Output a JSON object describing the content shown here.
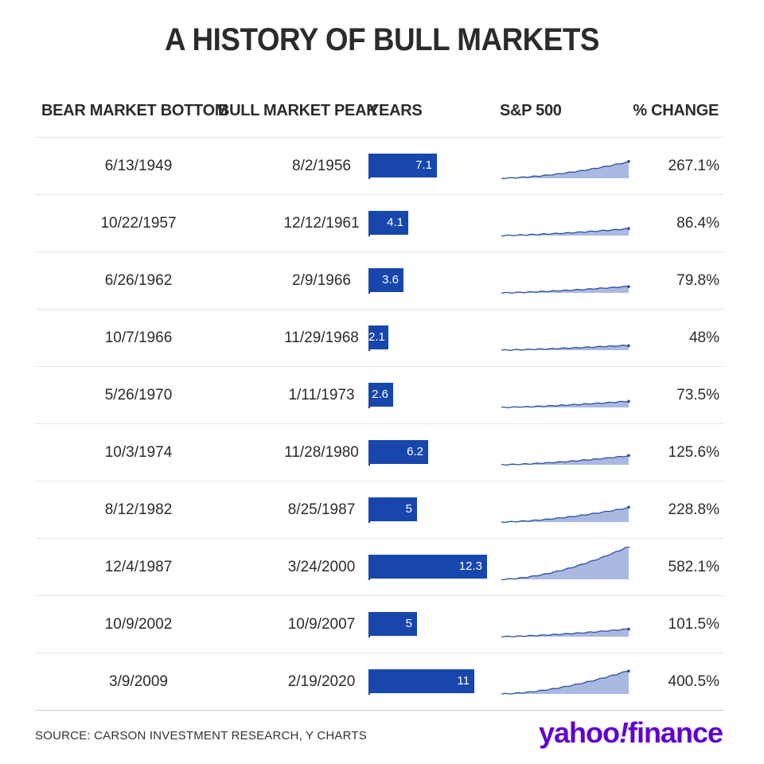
{
  "title": "A HISTORY OF BULL MARKETS",
  "columns": {
    "bottom": "BEAR MARKET BOTTOM",
    "peak": "BULL MARKET PEAK",
    "years": "YEARS",
    "sp": "S&P 500",
    "change": "% CHANGE"
  },
  "source": "SOURCE: CARSON INVESTMENT RESEARCH, Y CHARTS",
  "logo": {
    "main": "yahoo",
    "bang": "!",
    "suffix": "finance"
  },
  "colors": {
    "bar": "#1747ad",
    "spark_line": "#2d4f9e",
    "spark_fill": "#a9b9e2",
    "logo": "#5f01d1"
  },
  "chart_data": {
    "type": "table",
    "years_max": 12.3,
    "rows": [
      {
        "bottom": "6/13/1949",
        "peak": "8/2/1956",
        "years": 7.1,
        "years_label": "7.1",
        "change": "267.1%",
        "change_value": 267.1
      },
      {
        "bottom": "10/22/1957",
        "peak": "12/12/1961",
        "years": 4.1,
        "years_label": "4.1",
        "change": "86.4%",
        "change_value": 86.4
      },
      {
        "bottom": "6/26/1962",
        "peak": "2/9/1966",
        "years": 3.6,
        "years_label": "3.6",
        "change": "79.8%",
        "change_value": 79.8
      },
      {
        "bottom": "10/7/1966",
        "peak": "11/29/1968",
        "years": 2.1,
        "years_label": "2.1",
        "change": "48%",
        "change_value": 48
      },
      {
        "bottom": "5/26/1970",
        "peak": "1/11/1973",
        "years": 2.6,
        "years_label": "2.6",
        "change": "73.5%",
        "change_value": 73.5
      },
      {
        "bottom": "10/3/1974",
        "peak": "11/28/1980",
        "years": 6.2,
        "years_label": "6.2",
        "change": "125.6%",
        "change_value": 125.6
      },
      {
        "bottom": "8/12/1982",
        "peak": "8/25/1987",
        "years": 5,
        "years_label": "5",
        "change": "228.8%",
        "change_value": 228.8
      },
      {
        "bottom": "12/4/1987",
        "peak": "3/24/2000",
        "years": 12.3,
        "years_label": "12.3",
        "change": "582.1%",
        "change_value": 582.1
      },
      {
        "bottom": "10/9/2002",
        "peak": "10/9/2007",
        "years": 5,
        "years_label": "5",
        "change": "101.5%",
        "change_value": 101.5
      },
      {
        "bottom": "3/9/2009",
        "peak": "2/19/2020",
        "years": 11,
        "years_label": "11",
        "change": "400.5%",
        "change_value": 400.5
      }
    ]
  }
}
